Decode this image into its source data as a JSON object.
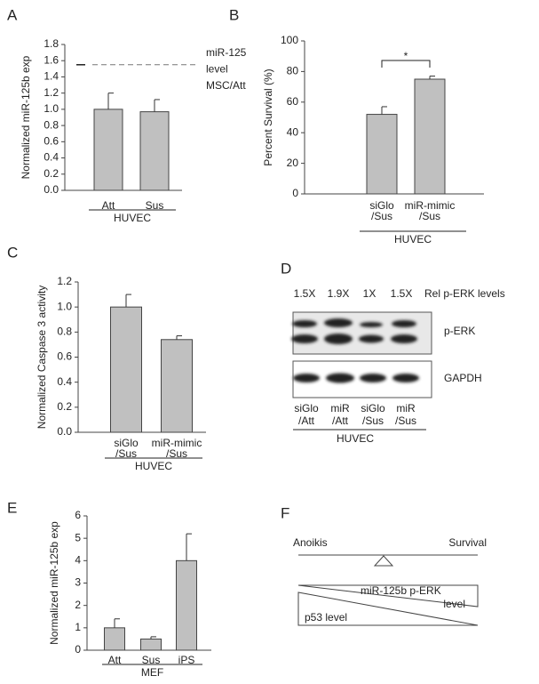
{
  "chart_data": [
    {
      "type": "bar",
      "panel": "A",
      "ylabel": "Normalized miR-125b exp",
      "categories": [
        "Att",
        "Sus"
      ],
      "values": [
        1.0,
        0.97
      ],
      "errors": [
        0.2,
        0.15
      ],
      "color": "#c0c0c0",
      "ylim": [
        0,
        1.8
      ],
      "yticks": [
        {
          "value": 0,
          "label": "0.0"
        },
        0.2,
        0.4,
        0.6,
        0.8,
        {
          "value": 1,
          "label": "1.0"
        },
        1.2,
        1.4,
        1.6,
        1.8
      ],
      "ref_line": 1.55,
      "annotation": [
        "miR-125",
        "level",
        "MSC/Att"
      ],
      "group_label": "HUVEC"
    },
    {
      "type": "bar",
      "panel": "B",
      "ylabel": "Percent Survival (%)",
      "categories": [
        [
          "siGlo",
          "/Sus"
        ],
        [
          "miR-mimic",
          "/Sus"
        ]
      ],
      "values": [
        52,
        75
      ],
      "errors": [
        5,
        2
      ],
      "color": "#c0c0c0",
      "ylim": [
        0,
        100
      ],
      "yticks": [
        0,
        20,
        40,
        60,
        80,
        100
      ],
      "significance": "*",
      "group_label": "HUVEC"
    },
    {
      "type": "bar",
      "panel": "C",
      "ylabel": "Normalized Caspase 3 activity",
      "categories": [
        [
          "siGlo",
          "/Sus"
        ],
        [
          "miR-mimic",
          "/Sus"
        ]
      ],
      "values": [
        1.0,
        0.74
      ],
      "errors": [
        0.1,
        0.03
      ],
      "color": "#c0c0c0",
      "ylim": [
        0,
        1.2
      ],
      "yticks": [
        {
          "value": 0,
          "label": "0.0"
        },
        0.2,
        0.4,
        0.6,
        0.8,
        {
          "value": 1,
          "label": "1.0"
        },
        1.2
      ],
      "group_label": "HUVEC"
    },
    {
      "type": "bar",
      "panel": "E",
      "ylabel": "Normalized miR-125b exp",
      "categories": [
        "Att",
        "Sus",
        "iPS"
      ],
      "values": [
        1.0,
        0.5,
        4.0
      ],
      "errors": [
        0.4,
        0.1,
        1.2
      ],
      "color": "#c0c0c0",
      "ylim": [
        0,
        6
      ],
      "yticks": [
        0,
        1,
        2,
        3,
        4,
        5,
        6
      ],
      "group_label": "MEF"
    }
  ],
  "blot": {
    "panel": "D",
    "fold_changes": [
      "1.5X",
      "1.9X",
      "1X",
      "1.5X"
    ],
    "fold_label": "Rel p-ERK levels",
    "rows": [
      "p-ERK",
      "GAPDH"
    ],
    "lanes": [
      [
        "siGlo",
        "/Att"
      ],
      [
        "miR",
        "/Att"
      ],
      [
        "siGlo",
        "/Sus"
      ],
      [
        "miR",
        "/Sus"
      ]
    ],
    "group_label": "HUVEC"
  },
  "diagram": {
    "panel": "F",
    "left": "Anoikis",
    "right": "Survival",
    "upper": [
      "miR-125b  p-ERK",
      "level"
    ],
    "lower": "p53 level"
  }
}
